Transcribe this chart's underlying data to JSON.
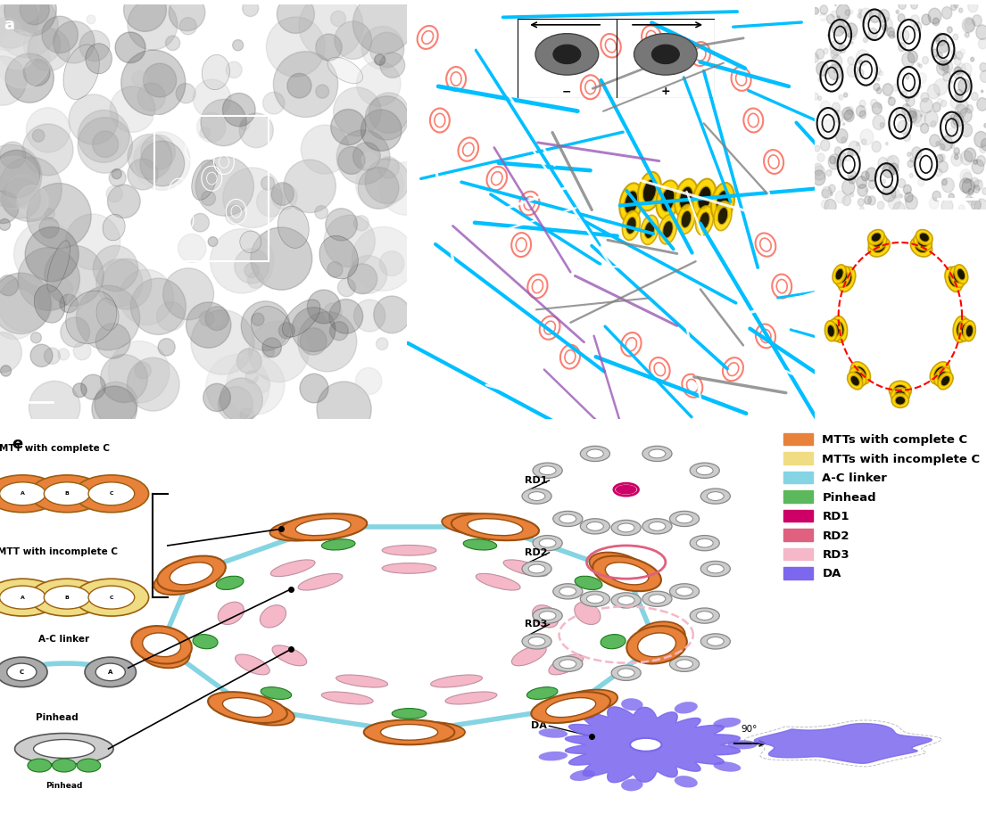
{
  "figure_width": 11.05,
  "figure_height": 9.4,
  "dpi": 100,
  "bg_color": "#ffffff",
  "panel_label_fontsize": 13,
  "panel_label_fontweight": "bold",
  "legend_items": [
    {
      "label": "MTTs with complete C",
      "color": "#E8813A"
    },
    {
      "label": "MTTs with incomplete C",
      "color": "#F0DC82"
    },
    {
      "label": "A-C linker",
      "color": "#85D4E3"
    },
    {
      "label": "Pinhead",
      "color": "#5CB85C"
    },
    {
      "label": "RD1",
      "color": "#CC0066"
    },
    {
      "label": "RD2",
      "color": "#E06080"
    },
    {
      "label": "RD3",
      "color": "#F4B8C8"
    },
    {
      "label": "DA",
      "color": "#7B68EE"
    }
  ],
  "legend_fontsize": 9.5,
  "colors": {
    "mtt_complete": "#E8813A",
    "mtt_incomplete": "#F0DC82",
    "ac_linker": "#85D4E3",
    "pinhead": "#5CB85C",
    "rd1": "#CC0066",
    "rd2": "#E06080",
    "rd3": "#F4B8C8",
    "da": "#7B68EE",
    "cyan_tube": "#00BFFF",
    "white_tube": "#FFFFFF",
    "purple_tube": "#9B59B6",
    "gray_tube": "#808080",
    "salmon_ring": "#FA8072",
    "yellow_mtt": "#FFD700"
  }
}
